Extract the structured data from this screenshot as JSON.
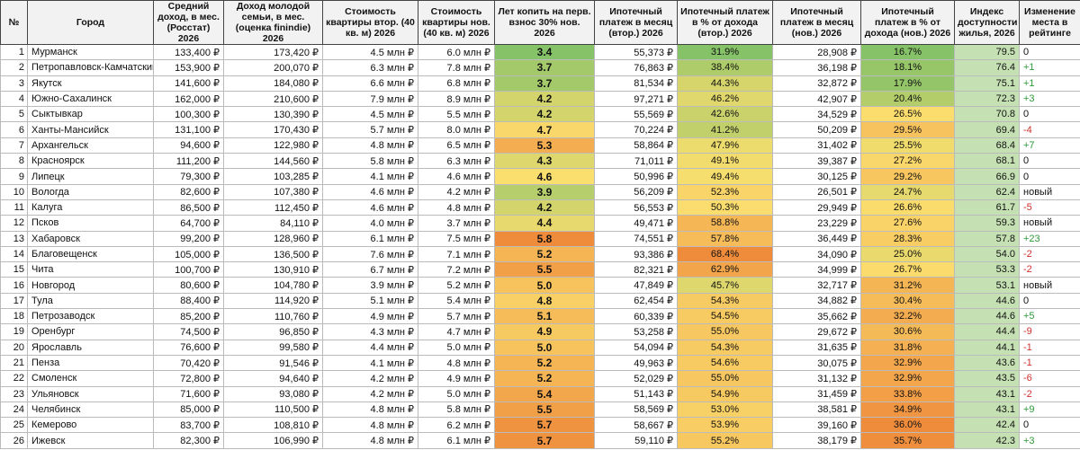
{
  "table": {
    "header": [
      "№",
      "Город",
      "Средний доход, в мес. (Росстат) 2026",
      "Доход молодой семьи, в мес. (оценка finindie) 2026",
      "Стоимость квартиры втор. (40 кв. м) 2026",
      "Стоимость квартиры нов. (40 кв. м) 2026",
      "Лет копить на перв. взнос 30% нов. 2026",
      "Ипотечный платеж в месяц (втор.) 2026",
      "Ипотечный платеж в % от дохода (втор.) 2026",
      "Ипотечный платеж в месяц (нов.) 2026",
      "Ипотечный платеж в % от дохода (нов.) 2026",
      "Индекс доступности жилья, 2026",
      "Изменение места в рейтинге"
    ],
    "rows": [
      [
        "1",
        "Мурманск",
        "133,400 ₽",
        "173,420 ₽",
        "4.5 млн ₽",
        "6.0 млн ₽",
        "3.4",
        "55,373 ₽",
        "31.9%",
        "28,908 ₽",
        "16.7%",
        "79.5",
        "0"
      ],
      [
        "2",
        "Петропавловск-Камчатский",
        "153,900 ₽",
        "200,070 ₽",
        "6.3 млн ₽",
        "7.8 млн ₽",
        "3.7",
        "76,863 ₽",
        "38.4%",
        "36,198 ₽",
        "18.1%",
        "76.4",
        "+1"
      ],
      [
        "3",
        "Якутск",
        "141,600 ₽",
        "184,080 ₽",
        "6.6 млн ₽",
        "6.8 млн ₽",
        "3.7",
        "81,534 ₽",
        "44.3%",
        "32,872 ₽",
        "17.9%",
        "75.1",
        "+1"
      ],
      [
        "4",
        "Южно-Сахалинск",
        "162,000 ₽",
        "210,600 ₽",
        "7.9 млн ₽",
        "8.9 млн ₽",
        "4.2",
        "97,271 ₽",
        "46.2%",
        "42,907 ₽",
        "20.4%",
        "72.3",
        "+3"
      ],
      [
        "5",
        "Сыктывкар",
        "100,300 ₽",
        "130,390 ₽",
        "4.5 млн ₽",
        "5.5 млн ₽",
        "4.2",
        "55,569 ₽",
        "42.6%",
        "34,529 ₽",
        "26.5%",
        "70.8",
        "0"
      ],
      [
        "6",
        "Ханты-Мансийск",
        "131,100 ₽",
        "170,430 ₽",
        "5.7 млн ₽",
        "8.0 млн ₽",
        "4.7",
        "70,224 ₽",
        "41.2%",
        "50,209 ₽",
        "29.5%",
        "69.4",
        "-4"
      ],
      [
        "7",
        "Архангельск",
        "94,600 ₽",
        "122,980 ₽",
        "4.8 млн ₽",
        "6.5 млн ₽",
        "5.3",
        "58,864 ₽",
        "47.9%",
        "31,402 ₽",
        "25.5%",
        "68.4",
        "+7"
      ],
      [
        "8",
        "Красноярск",
        "111,200 ₽",
        "144,560 ₽",
        "5.8 млн ₽",
        "6.3 млн ₽",
        "4.3",
        "71,011 ₽",
        "49.1%",
        "39,387 ₽",
        "27.2%",
        "68.1",
        "0"
      ],
      [
        "9",
        "Липецк",
        "79,300 ₽",
        "103,285 ₽",
        "4.1 млн ₽",
        "4.6 млн ₽",
        "4.6",
        "50,996 ₽",
        "49.4%",
        "30,125 ₽",
        "29.2%",
        "66.9",
        "0"
      ],
      [
        "10",
        "Вологда",
        "82,600 ₽",
        "107,380 ₽",
        "4.6 млн ₽",
        "4.2 млн ₽",
        "3.9",
        "56,209 ₽",
        "52.3%",
        "26,501 ₽",
        "24.7%",
        "62.4",
        "новый"
      ],
      [
        "11",
        "Калуга",
        "86,500 ₽",
        "112,450 ₽",
        "4.6 млн ₽",
        "4.8 млн ₽",
        "4.2",
        "56,553 ₽",
        "50.3%",
        "29,949 ₽",
        "26.6%",
        "61.7",
        "-5"
      ],
      [
        "12",
        "Псков",
        "64,700 ₽",
        "84,110 ₽",
        "4.0 млн ₽",
        "3.7 млн ₽",
        "4.4",
        "49,471 ₽",
        "58.8%",
        "23,229 ₽",
        "27.6%",
        "59.3",
        "новый"
      ],
      [
        "13",
        "Хабаровск",
        "99,200 ₽",
        "128,960 ₽",
        "6.1 млн ₽",
        "7.5 млн ₽",
        "5.8",
        "74,551 ₽",
        "57.8%",
        "36,449 ₽",
        "28.3%",
        "57.8",
        "+23"
      ],
      [
        "14",
        "Благовещенск",
        "105,000 ₽",
        "136,500 ₽",
        "7.6 млн ₽",
        "7.1 млн ₽",
        "5.2",
        "93,386 ₽",
        "68.4%",
        "34,090 ₽",
        "25.0%",
        "54.0",
        "-2"
      ],
      [
        "15",
        "Чита",
        "100,700 ₽",
        "130,910 ₽",
        "6.7 млн ₽",
        "7.2 млн ₽",
        "5.5",
        "82,321 ₽",
        "62.9%",
        "34,999 ₽",
        "26.7%",
        "53.3",
        "-2"
      ],
      [
        "16",
        "Новгород",
        "80,600 ₽",
        "104,780 ₽",
        "3.9 млн ₽",
        "5.2 млн ₽",
        "5.0",
        "47,849 ₽",
        "45.7%",
        "32,717 ₽",
        "31.2%",
        "53.1",
        "новый"
      ],
      [
        "17",
        "Тула",
        "88,400 ₽",
        "114,920 ₽",
        "5.1 млн ₽",
        "5.4 млн ₽",
        "4.8",
        "62,454 ₽",
        "54.3%",
        "34,882 ₽",
        "30.4%",
        "44.6",
        "0"
      ],
      [
        "18",
        "Петрозаводск",
        "85,200 ₽",
        "110,760 ₽",
        "4.9 млн ₽",
        "5.7 млн ₽",
        "5.1",
        "60,339 ₽",
        "54.5%",
        "35,662 ₽",
        "32.2%",
        "44.6",
        "+5"
      ],
      [
        "19",
        "Оренбург",
        "74,500 ₽",
        "96,850 ₽",
        "4.3 млн ₽",
        "4.7 млн ₽",
        "4.9",
        "53,258 ₽",
        "55.0%",
        "29,672 ₽",
        "30.6%",
        "44.4",
        "-9"
      ],
      [
        "20",
        "Ярославль",
        "76,600 ₽",
        "99,580 ₽",
        "4.4 млн ₽",
        "5.0 млн ₽",
        "5.0",
        "54,094 ₽",
        "54.3%",
        "31,635 ₽",
        "31.8%",
        "44.1",
        "-1"
      ],
      [
        "21",
        "Пенза",
        "70,420 ₽",
        "91,546 ₽",
        "4.1 млн ₽",
        "4.8 млн ₽",
        "5.2",
        "49,963 ₽",
        "54.6%",
        "30,075 ₽",
        "32.9%",
        "43.6",
        "-1"
      ],
      [
        "22",
        "Смоленск",
        "72,800 ₽",
        "94,640 ₽",
        "4.2 млн ₽",
        "4.9 млн ₽",
        "5.2",
        "52,029 ₽",
        "55.0%",
        "31,132 ₽",
        "32.9%",
        "43.5",
        "-6"
      ],
      [
        "23",
        "Ульяновск",
        "71,600 ₽",
        "93,080 ₽",
        "4.2 млн ₽",
        "5.0 млн ₽",
        "5.4",
        "51,143 ₽",
        "54.9%",
        "31,459 ₽",
        "33.8%",
        "43.1",
        "-2"
      ],
      [
        "24",
        "Челябинск",
        "85,000 ₽",
        "110,500 ₽",
        "4.8 млн ₽",
        "5.8 млн ₽",
        "5.5",
        "58,569 ₽",
        "53.0%",
        "38,581 ₽",
        "34.9%",
        "43.1",
        "+9"
      ],
      [
        "25",
        "Кемерово",
        "83,700 ₽",
        "108,810 ₽",
        "4.8 млн ₽",
        "6.2 млн ₽",
        "5.7",
        "58,667 ₽",
        "53.9%",
        "39,160 ₽",
        "36.0%",
        "42.4",
        "0"
      ],
      [
        "26",
        "Ижевск",
        "82,300 ₽",
        "106,990 ₽",
        "4.8 млн ₽",
        "6.1 млн ₽",
        "5.7",
        "59,110 ₽",
        "55.2%",
        "38,179 ₽",
        "35.7%",
        "42.3",
        "+3"
      ]
    ]
  }
}
